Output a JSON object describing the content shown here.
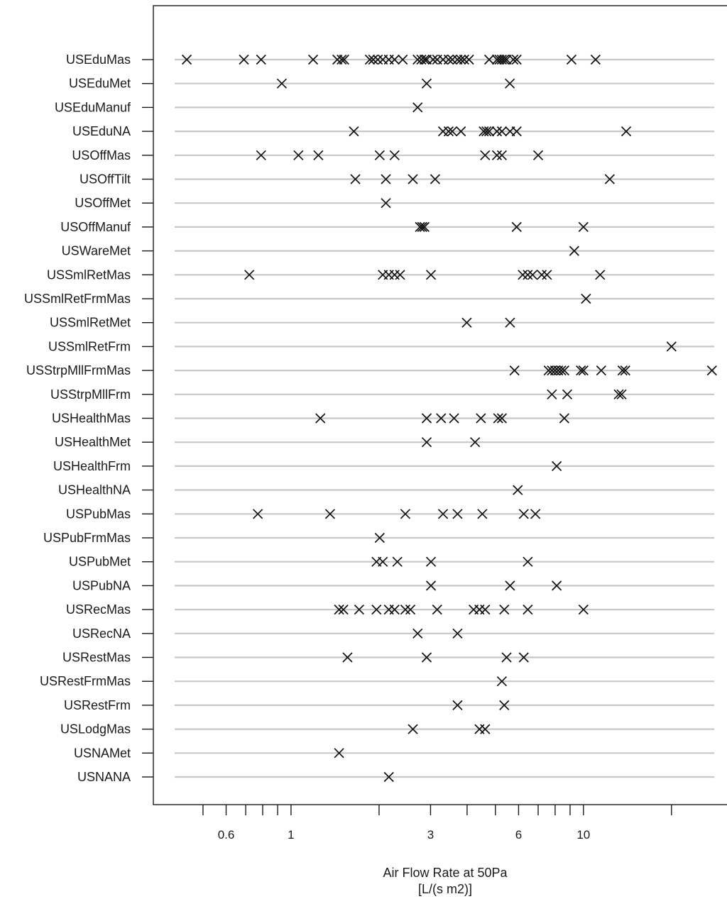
{
  "chart_data": {
    "type": "scatter",
    "title": "",
    "xlabel": "Air Flow Rate at 50Pa",
    "xlabel_unit": "[L/(s m2)]",
    "ylabel": "",
    "x_scale": "log",
    "xlim": [
      0.4,
      28
    ],
    "x_ticks": [
      0.6,
      1,
      3,
      6,
      10
    ],
    "x_minor_ticks": [
      0.5,
      0.7,
      0.8,
      0.9,
      2,
      4,
      5,
      7,
      8,
      9,
      20
    ],
    "grid": false,
    "categories": [
      "USEduMas",
      "USEduMet",
      "USEduManuf",
      "USEduNA",
      "USOffMas",
      "USOffTilt",
      "USOffMet",
      "USOffManuf",
      "USWareMet",
      "USSmlRetMas",
      "USSmlRetFrmMas",
      "USSmlRetMet",
      "USSmlRetFrm",
      "USStrpMllFrmMas",
      "USStrpMllFrm",
      "USHealthMas",
      "USHealthMet",
      "USHealthFrm",
      "USHealthNA",
      "USPubMas",
      "USPubFrmMas",
      "USPubMet",
      "USPubNA",
      "USRecMas",
      "USRecNA",
      "USRestMas",
      "USRestFrmMas",
      "USRestFrm",
      "USLodgMas",
      "USNAMet",
      "USNANA"
    ],
    "values": [
      [
        0.44,
        0.69,
        0.79,
        1.19,
        1.44,
        1.49,
        1.52,
        1.86,
        1.91,
        1.98,
        2.06,
        2.16,
        2.26,
        2.41,
        2.71,
        2.79,
        2.86,
        2.91,
        3.06,
        3.16,
        3.31,
        3.46,
        3.56,
        3.71,
        3.81,
        3.91,
        4.06,
        4.76,
        5.06,
        5.16,
        5.26,
        5.36,
        5.46,
        5.76,
        5.91,
        9.1,
        11.0
      ],
      [
        0.93,
        2.91,
        5.6
      ],
      [
        2.71
      ],
      [
        1.64,
        3.31,
        3.46,
        3.56,
        3.81,
        4.56,
        4.66,
        4.76,
        5.06,
        5.26,
        5.61,
        5.91,
        14.0
      ],
      [
        0.79,
        1.06,
        1.24,
        2.01,
        2.26,
        4.61,
        5.06,
        5.26,
        7.0
      ],
      [
        1.66,
        2.11,
        2.61,
        3.11,
        12.3
      ],
      [
        2.11
      ],
      [
        2.76,
        2.81,
        2.86,
        5.91,
        10.0
      ],
      [
        9.3
      ],
      [
        0.72,
        2.06,
        2.16,
        2.26,
        2.36,
        3.01,
        6.2,
        6.45,
        6.7,
        7.2,
        7.5,
        11.4
      ],
      [
        10.2
      ],
      [
        3.99,
        5.61
      ],
      [
        20.0
      ],
      [
        5.81,
        7.6,
        7.8,
        8.0,
        8.2,
        8.4,
        8.6,
        9.8,
        10.0,
        11.5,
        13.6,
        13.9,
        27.5
      ],
      [
        7.8,
        8.8,
        13.2,
        13.5
      ],
      [
        1.26,
        2.91,
        3.26,
        3.61,
        4.46,
        5.11,
        5.26,
        8.6
      ],
      [
        2.91,
        4.26
      ],
      [
        8.1
      ],
      [
        5.96
      ],
      [
        0.77,
        1.36,
        2.46,
        3.31,
        3.71,
        4.51,
        6.25,
        6.85
      ],
      [
        2.01
      ],
      [
        1.96,
        2.06,
        2.31,
        3.01,
        6.45
      ],
      [
        3.01,
        5.61,
        8.1
      ],
      [
        1.46,
        1.51,
        1.71,
        1.96,
        2.16,
        2.26,
        2.46,
        2.56,
        3.16,
        4.21,
        4.41,
        4.61,
        5.36,
        6.45,
        10.0
      ],
      [
        2.71,
        3.71
      ],
      [
        1.56,
        2.91,
        5.46,
        6.25
      ],
      [
        5.26
      ],
      [
        3.71,
        5.36
      ],
      [
        2.61,
        4.41,
        4.61
      ],
      [
        1.46
      ],
      [
        2.16
      ]
    ]
  }
}
